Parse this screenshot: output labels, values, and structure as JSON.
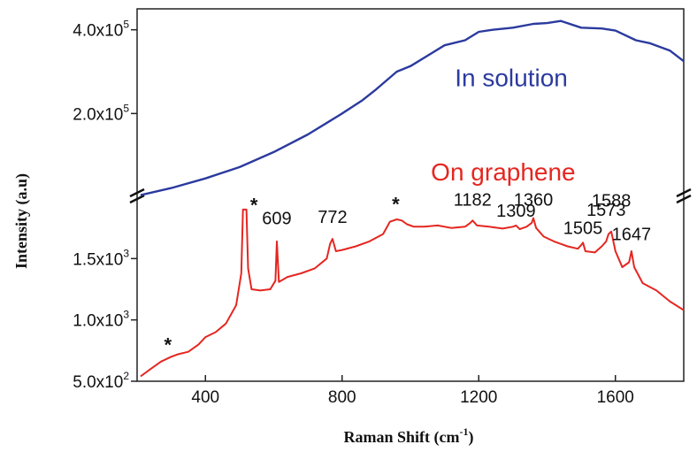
{
  "chart_data": {
    "type": "line",
    "title": "",
    "xlabel": "Raman Shift (cm",
    "xlabel_superscript": "-1",
    "xlabel_suffix": ")",
    "ylabel": "Intensity (a.u)",
    "xlim": [
      200,
      1800
    ],
    "x_ticks": [
      {
        "value": 400,
        "label": "400"
      },
      {
        "value": 800,
        "label": "800"
      },
      {
        "value": 1200,
        "label": "1200"
      },
      {
        "value": 1600,
        "label": "1600"
      }
    ],
    "axis_break": true,
    "upper_panel": {
      "ylim": [
        0,
        450000
      ],
      "y_ticks": [
        {
          "value": 200000,
          "mantissa": "2.0x10",
          "exponent": "5"
        },
        {
          "value": 400000,
          "mantissa": "4.0x10",
          "exponent": "5"
        }
      ]
    },
    "lower_panel": {
      "ylim": [
        500,
        2000
      ],
      "y_ticks": [
        {
          "value": 500,
          "mantissa": "5.0x10",
          "exponent": "2"
        },
        {
          "value": 1000,
          "mantissa": "1.0x10",
          "exponent": "3"
        },
        {
          "value": 1500,
          "mantissa": "1.5x10",
          "exponent": "3"
        }
      ]
    },
    "series": [
      {
        "name": "In solution",
        "color": "#2b3a9e",
        "panel": "upper",
        "x": [
          210,
          300,
          400,
          500,
          600,
          700,
          760,
          800,
          860,
          900,
          960,
          1000,
          1060,
          1100,
          1160,
          1200,
          1240,
          1300,
          1360,
          1400,
          1440,
          1500,
          1560,
          1600,
          1660,
          1700,
          1760,
          1800
        ],
        "y": [
          5000,
          22000,
          45000,
          72000,
          108000,
          150000,
          180000,
          200000,
          232000,
          258000,
          300000,
          313000,
          343000,
          363000,
          375000,
          395000,
          400000,
          405000,
          414000,
          416000,
          421000,
          405000,
          403000,
          398000,
          375000,
          368000,
          350000,
          325000
        ]
      },
      {
        "name": "On graphene",
        "color": "#e52620",
        "panel": "lower",
        "x": [
          210,
          240,
          270,
          300,
          320,
          350,
          380,
          400,
          430,
          460,
          490,
          505,
          510,
          515,
          520,
          525,
          535,
          560,
          590,
          605,
          609,
          615,
          640,
          680,
          720,
          755,
          765,
          772,
          782,
          800,
          840,
          880,
          920,
          940,
          960,
          975,
          990,
          1010,
          1040,
          1080,
          1120,
          1160,
          1175,
          1182,
          1195,
          1230,
          1270,
          1300,
          1309,
          1320,
          1340,
          1355,
          1360,
          1368,
          1390,
          1420,
          1460,
          1490,
          1500,
          1505,
          1512,
          1540,
          1560,
          1573,
          1580,
          1588,
          1600,
          1620,
          1640,
          1647,
          1655,
          1680,
          1720,
          1760,
          1800
        ],
        "y": [
          540,
          600,
          660,
          700,
          720,
          740,
          800,
          860,
          900,
          970,
          1120,
          1380,
          1900,
          1900,
          1900,
          1420,
          1250,
          1240,
          1250,
          1320,
          1640,
          1310,
          1350,
          1380,
          1420,
          1500,
          1620,
          1660,
          1560,
          1570,
          1600,
          1640,
          1700,
          1800,
          1820,
          1810,
          1780,
          1760,
          1760,
          1770,
          1750,
          1760,
          1790,
          1810,
          1770,
          1760,
          1745,
          1760,
          1770,
          1740,
          1760,
          1790,
          1830,
          1750,
          1680,
          1640,
          1600,
          1580,
          1610,
          1630,
          1560,
          1550,
          1600,
          1640,
          1700,
          1720,
          1560,
          1430,
          1470,
          1560,
          1430,
          1300,
          1240,
          1150,
          1080
        ]
      }
    ],
    "annotations": [
      {
        "text": "1182",
        "kind": "peak",
        "x": 1182,
        "y": 1930
      },
      {
        "text": "1360",
        "kind": "peak",
        "x": 1360,
        "y": 1930
      },
      {
        "text": "1588",
        "kind": "peak",
        "x": 1588,
        "y": 1925
      },
      {
        "text": "609",
        "kind": "peak",
        "x": 609,
        "y": 1780
      },
      {
        "text": "772",
        "kind": "peak",
        "x": 772,
        "y": 1790
      },
      {
        "text": "1309",
        "kind": "peak",
        "x": 1309,
        "y": 1840
      },
      {
        "text": "1573",
        "kind": "peak",
        "x": 1573,
        "y": 1850
      },
      {
        "text": "1505",
        "kind": "peak",
        "x": 1505,
        "y": 1700
      },
      {
        "text": "1647",
        "kind": "peak",
        "x": 1647,
        "y": 1650
      },
      {
        "text": "*",
        "kind": "star",
        "x": 542,
        "y": 1880
      },
      {
        "text": "*",
        "kind": "star",
        "x": 957,
        "y": 1890
      },
      {
        "text": "*",
        "kind": "star",
        "x": 290,
        "y": 740
      }
    ],
    "series_labels": [
      {
        "text": "In solution",
        "x": 1130,
        "y_panel": "upper",
        "y": 265000,
        "color": "#2b3a9e"
      },
      {
        "text": "On graphene",
        "x": 1060,
        "y_panel": "upper",
        "y": 40000,
        "color": "#e52620"
      }
    ]
  }
}
